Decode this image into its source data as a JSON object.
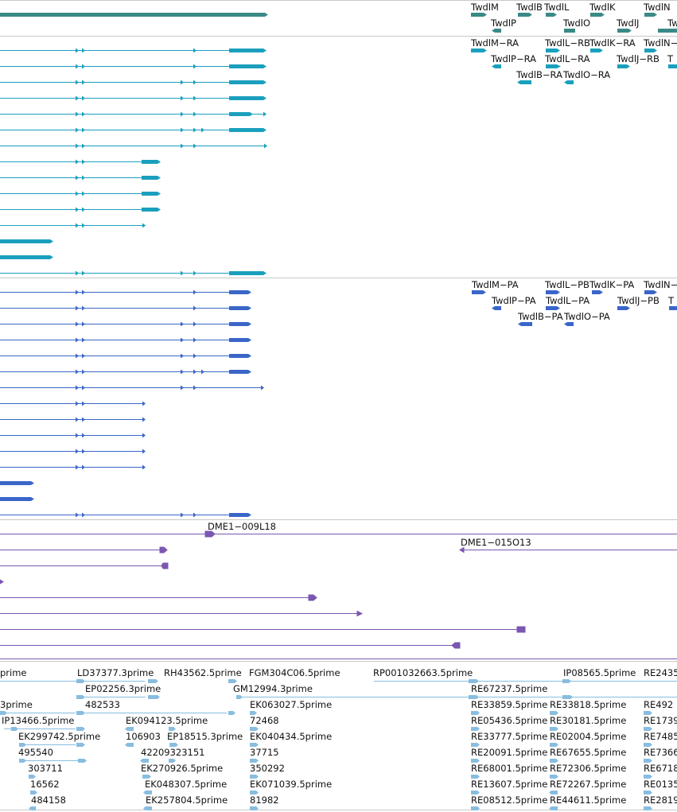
{
  "colors": {
    "genes": "#3a8a86",
    "transcripts_ra": "#1aa0bd",
    "proteins": "#3a66c8",
    "clones": "#7a57b0",
    "ests": "#88bde0",
    "divider": "#c8c8c8"
  },
  "tracks": {
    "genes": {
      "labels": [
        "TwdlM",
        "TwdlB",
        "TwdlL",
        "TwdlK",
        "TwdlN",
        "TwdlP",
        "TwdlO",
        "TwdlJ",
        "Tw"
      ]
    },
    "transcripts": {
      "labels": [
        "TwdlM−RA",
        "TwdlL−RB",
        "TwdlK−RA",
        "TwdlN−",
        "TwdlP−RA",
        "TwdlL−RA",
        "TwdlJ−RB",
        "T",
        "TwdlB−RA",
        "TwdlO−RA"
      ]
    },
    "proteins": {
      "labels": [
        "TwdlM−PA",
        "TwdlL−PB",
        "TwdlK−PA",
        "TwdlN−",
        "TwdlP−PA",
        "TwdlL−PA",
        "TwdlJ−PB",
        "T",
        "TwdlB−PA",
        "TwdlO−PA"
      ]
    },
    "clones": {
      "labels": [
        "DME1−009L18",
        "DME1−015O13"
      ]
    },
    "ests": {
      "labels": [
        "prime",
        "LD37377.3prime",
        "RH43562.5prime",
        "FGM304C06.5prime",
        "RP001032663.5prime",
        "IP08565.5prime",
        "RE2435",
        "EP02256.3prime",
        "GM12994.3prime",
        "RE67237.5prime",
        "3prime",
        "482533",
        "EK063027.5prime",
        "RE33859.5prime",
        "RE33818.5prime",
        "RE492",
        "IP13466.5prime",
        "EK094123.5prime",
        "72468",
        "RE05436.5prime",
        "RE30181.5prime",
        "RE1739",
        "EK299742.5prime",
        "106903",
        "EP18515.3prime",
        "EK040434.5prime",
        "RE33777.5prime",
        "RE02004.5prime",
        "RE7485",
        "495540",
        "42209323151",
        "37715",
        "RE20091.5prime",
        "RE67655.5prime",
        "RE7366",
        "303711",
        "EK270926.5prime",
        "350292",
        "RE68001.5prime",
        "RE72306.5prime",
        "RE6718",
        "16562",
        "EK048307.5prime",
        "EK071039.5prime",
        "RE13607.5prime",
        "RE72267.5prime",
        "RE0135",
        "484158",
        "EK257804.5prime",
        "81982",
        "RE08512.5prime",
        "RE44611.5prime",
        "RE2819"
      ]
    }
  }
}
